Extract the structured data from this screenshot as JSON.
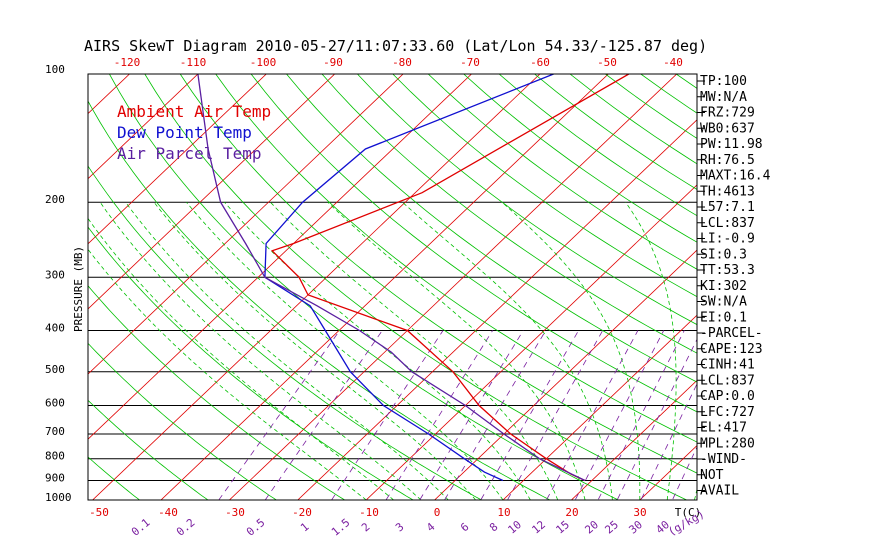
{
  "title": "AIRS SkewT Diagram 2010-05-27/11:07:33.60 (Lat/Lon 54.33/-125.87 deg)",
  "colors": {
    "ambient": "#e00000",
    "dewpoint": "#1010d0",
    "parcel": "#5a1fa0",
    "isotherm": "#e00000",
    "dry_adiabat": "#00c000",
    "moist_adiabat": "#00c000",
    "mixing_ratio": "#7a1fa0",
    "isobar": "#000000"
  },
  "chart_data": {
    "type": "line",
    "title": "AIRS SkewT Diagram 2010-05-27/11:07:33.60 (Lat/Lon 54.33/-125.87 deg)",
    "ylabel": "PRESSURE (MB)",
    "xlabel": "T(C)",
    "mixing_ratio_label": "(g/kg)",
    "pressure_ticks": [
      "100",
      "200",
      "300",
      "400",
      "500",
      "600",
      "700",
      "800",
      "900",
      "1000"
    ],
    "temp_ticks_top": [
      "-120",
      "-110",
      "-100",
      "-90",
      "-80",
      "-70",
      "-60",
      "-50",
      "-40"
    ],
    "temp_ticks_bottom": [
      "-50",
      "-40",
      "-30",
      "-20",
      "-10",
      "0",
      "10",
      "20",
      "30"
    ],
    "mixing_ratio_ticks": [
      "0.1",
      "0.2",
      "0.5",
      "1",
      "1.5",
      "2",
      "3",
      "4",
      "6",
      "8",
      "10",
      "12",
      "15",
      "20",
      "25",
      "30",
      "40"
    ],
    "legend": [
      "Ambient Air Temp",
      "Dew Point Temp",
      "Air Parcel Temp"
    ],
    "series": [
      {
        "name": "Ambient Air Temp",
        "p": [
          100,
          190,
          250,
          260,
          300,
          330,
          400,
          500,
          600,
          700,
          800,
          870,
          900
        ],
        "t": [
          -47,
          -59,
          -70,
          -72,
          -64,
          -60,
          -40,
          -27,
          -18,
          -9,
          0,
          6,
          9
        ]
      },
      {
        "name": "Dew Point Temp",
        "p": [
          100,
          150,
          200,
          250,
          300,
          350,
          400,
          500,
          600,
          700,
          800,
          860,
          900
        ],
        "t": [
          -58,
          -74,
          -75,
          -74,
          -69,
          -58,
          -52,
          -42,
          -32,
          -21,
          -12,
          -7,
          -3
        ]
      },
      {
        "name": "Air Parcel Temp",
        "p": [
          100,
          150,
          200,
          250,
          300,
          350,
          400,
          450,
          500,
          600,
          700,
          800,
          900
        ],
        "t": [
          -110,
          -97,
          -87,
          -77,
          -69,
          -57,
          -47,
          -39,
          -33,
          -20,
          -10,
          -1,
          9
        ]
      }
    ]
  },
  "indices": [
    "TP:100",
    "MW:N/A",
    "FRZ:729",
    "WB0:637",
    "PW:11.98",
    "RH:76.5",
    "MAXT:16.4",
    "TH:4613",
    "L57:7.1",
    "LCL:837",
    "LI:-0.9",
    "SI:0.3",
    "TT:53.3",
    "KI:302",
    "SW:N/A",
    "EI:0.1",
    "-PARCEL-",
    "CAPE:123",
    "CINH:41",
    "LCL:837",
    "CAP:0.0",
    "LFC:727",
    "EL:417",
    "MPL:280",
    "-WIND-",
    "NOT",
    "AVAIL"
  ]
}
